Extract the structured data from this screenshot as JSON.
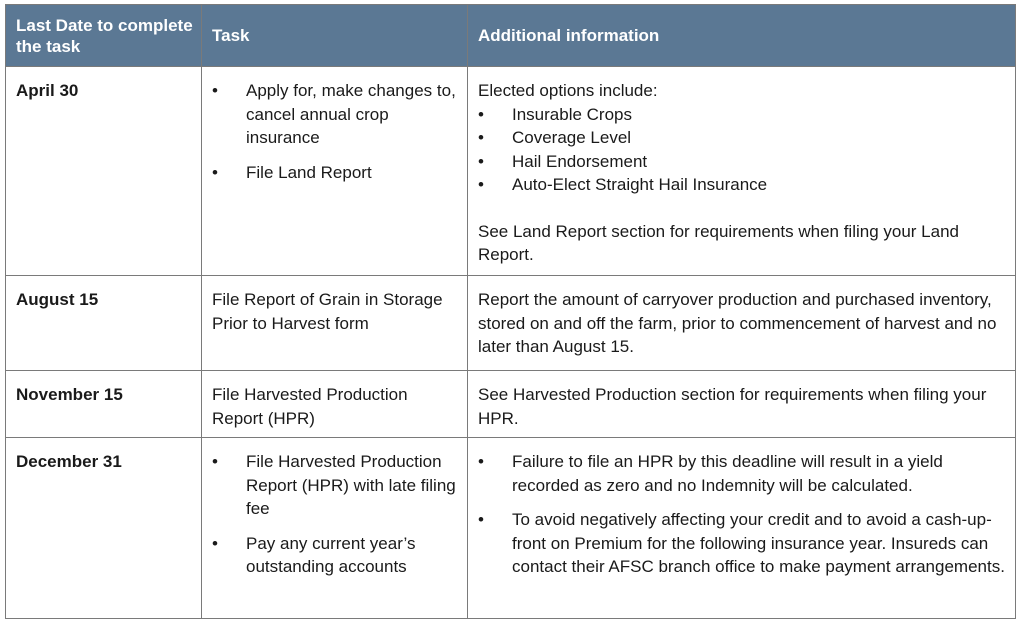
{
  "header": {
    "col1": "Last Date to complete the task",
    "col2": "Task",
    "col3": "Additional information"
  },
  "colors": {
    "header_bg": "#5b7894",
    "header_text": "#ffffff"
  },
  "rows": [
    {
      "date": "April 30",
      "tasks": [
        "Apply for, make changes to, cancel annual crop insurance",
        "File Land Report"
      ],
      "info_intro": "Elected options include:",
      "info_list": [
        "Insurable Crops",
        "Coverage Level",
        "Hail Endorsement",
        "Auto-Elect Straight Hail Insurance"
      ],
      "info_note": "See Land Report section for requirements when filing your Land Report."
    },
    {
      "date": "August 15",
      "task": "File Report of Grain in Storage Prior to Harvest form",
      "info": "Report the amount of carryover production and purchased inventory, stored on and off the farm, prior to commencement of harvest and no later than August 15."
    },
    {
      "date": "November 15",
      "task": "File Harvested Production Report (HPR)",
      "info": "See Harvested Production section for requirements when filing your HPR."
    },
    {
      "date": "December 31",
      "tasks": [
        "File Harvested Production Report (HPR) with late filing fee",
        "Pay any current year’s outstanding accounts"
      ],
      "info_list": [
        "Failure to file an HPR by this deadline will result in a yield recorded as zero and no Indemnity will be calculated.",
        "To avoid negatively affecting your credit and to avoid a cash-up-front on Premium for the following insurance year. Insureds can contact their AFSC branch office to make payment arrangements."
      ]
    }
  ]
}
